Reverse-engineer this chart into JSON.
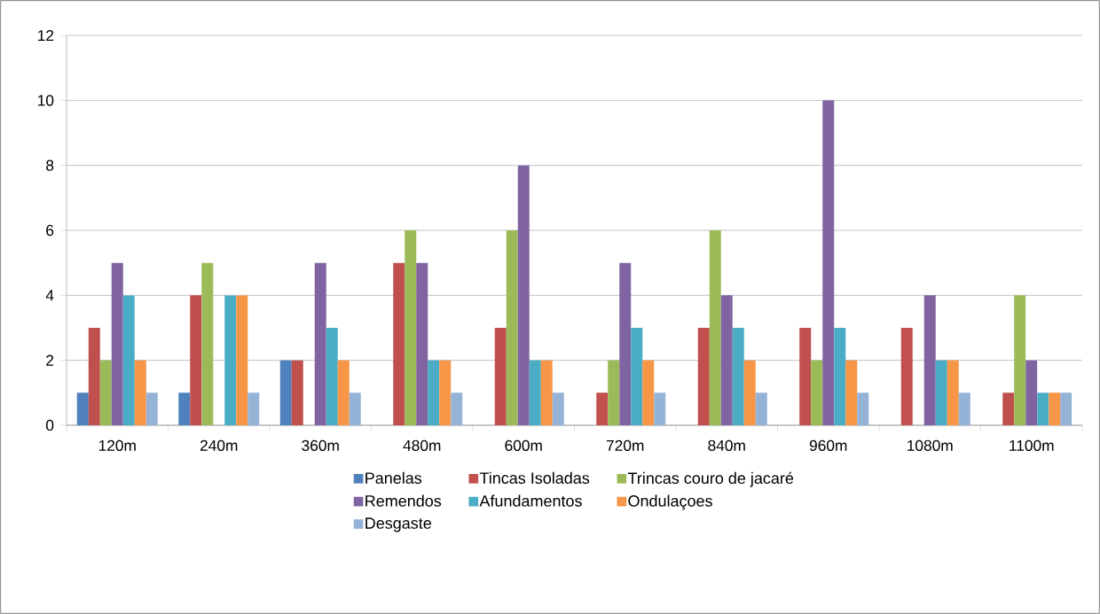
{
  "chart_data": {
    "type": "bar",
    "categories": [
      "120m",
      "240m",
      "360m",
      "480m",
      "600m",
      "720m",
      "840m",
      "960m",
      "1080m",
      "1100m"
    ],
    "series": [
      {
        "name": "Panelas",
        "color": "#4f81bd",
        "values": [
          1,
          1,
          2,
          0,
          0,
          0,
          0,
          0,
          0,
          0
        ]
      },
      {
        "name": "Tincas Isoladas",
        "color": "#c0504d",
        "values": [
          3,
          4,
          2,
          5,
          3,
          1,
          3,
          3,
          3,
          1
        ]
      },
      {
        "name": "Trincas couro de jacaré",
        "color": "#9bbb59",
        "values": [
          2,
          5,
          0,
          6,
          6,
          2,
          6,
          2,
          0,
          4
        ]
      },
      {
        "name": "Remendos",
        "color": "#8064a2",
        "values": [
          5,
          0,
          5,
          5,
          8,
          5,
          4,
          10,
          4,
          2
        ]
      },
      {
        "name": "Afundamentos",
        "color": "#4bacc6",
        "values": [
          4,
          4,
          3,
          2,
          2,
          3,
          3,
          3,
          2,
          1
        ]
      },
      {
        "name": "Ondulaçoes",
        "color": "#f79646",
        "values": [
          2,
          4,
          2,
          2,
          2,
          2,
          2,
          2,
          2,
          1
        ]
      },
      {
        "name": "Desgaste",
        "color": "#95b3d7",
        "values": [
          1,
          1,
          1,
          1,
          1,
          1,
          1,
          1,
          1,
          1
        ]
      }
    ],
    "ylim": [
      0,
      12
    ],
    "yticks": [
      0,
      2,
      4,
      6,
      8,
      10,
      12
    ],
    "grid": "y",
    "legend": "bottom"
  }
}
